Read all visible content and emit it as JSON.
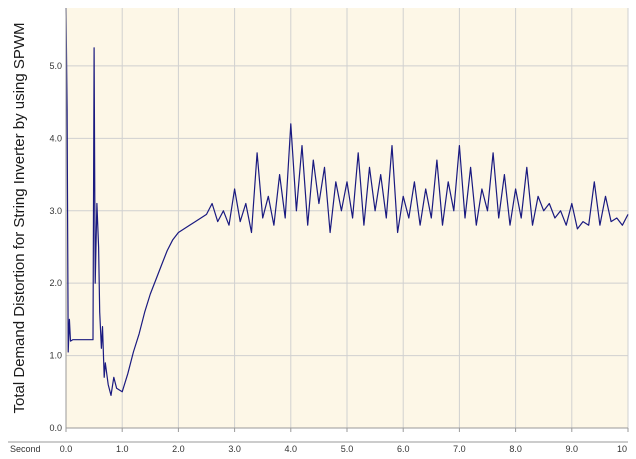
{
  "chart_data": {
    "type": "line",
    "title": "",
    "xlabel": "Second",
    "ylabel": "Total Demand Distortion for String Inverter by using SPWM",
    "xlim": [
      0,
      10
    ],
    "ylim": [
      0,
      5.8
    ],
    "x_ticks": [
      "0.0",
      "1.0",
      "2.0",
      "3.0",
      "4.0",
      "5.0",
      "6.0",
      "7.0",
      "8.0",
      "9.0",
      "10"
    ],
    "y_ticks": [
      "0.0",
      "1.0",
      "2.0",
      "3.0",
      "4.0",
      "5.0"
    ],
    "grid": true,
    "legend": "none",
    "series": [
      {
        "color": "#1a1a80",
        "x": [
          0.0,
          0.02,
          0.04,
          0.06,
          0.08,
          0.12,
          0.2,
          0.3,
          0.4,
          0.48,
          0.5,
          0.52,
          0.55,
          0.58,
          0.6,
          0.63,
          0.65,
          0.68,
          0.7,
          0.75,
          0.8,
          0.85,
          0.9,
          1.0,
          1.1,
          1.2,
          1.3,
          1.4,
          1.5,
          1.6,
          1.7,
          1.8,
          1.9,
          2.0,
          2.1,
          2.2,
          2.3,
          2.4,
          2.5,
          2.6,
          2.7,
          2.8,
          2.9,
          3.0,
          3.1,
          3.2,
          3.3,
          3.4,
          3.5,
          3.6,
          3.7,
          3.8,
          3.9,
          4.0,
          4.1,
          4.2,
          4.3,
          4.4,
          4.5,
          4.6,
          4.7,
          4.8,
          4.9,
          5.0,
          5.1,
          5.2,
          5.3,
          5.4,
          5.5,
          5.6,
          5.7,
          5.8,
          5.9,
          6.0,
          6.1,
          6.2,
          6.3,
          6.4,
          6.5,
          6.6,
          6.7,
          6.8,
          6.9,
          7.0,
          7.1,
          7.2,
          7.3,
          7.4,
          7.5,
          7.6,
          7.7,
          7.8,
          7.9,
          8.0,
          8.1,
          8.2,
          8.3,
          8.4,
          8.5,
          8.6,
          8.7,
          8.8,
          8.9,
          9.0,
          9.1,
          9.2,
          9.3,
          9.4,
          9.5,
          9.6,
          9.7,
          9.8,
          9.9,
          10.0
        ],
        "y": [
          5.8,
          4.4,
          1.05,
          1.5,
          1.2,
          1.22,
          1.22,
          1.22,
          1.22,
          1.22,
          5.25,
          2.0,
          3.1,
          2.5,
          1.6,
          1.1,
          1.4,
          0.7,
          0.9,
          0.6,
          0.45,
          0.7,
          0.55,
          0.5,
          0.75,
          1.05,
          1.3,
          1.6,
          1.85,
          2.05,
          2.25,
          2.45,
          2.6,
          2.7,
          2.75,
          2.8,
          2.85,
          2.9,
          2.95,
          3.1,
          2.85,
          3.0,
          2.8,
          3.3,
          2.85,
          3.1,
          2.7,
          3.8,
          2.9,
          3.2,
          2.8,
          3.5,
          2.9,
          4.2,
          3.0,
          3.9,
          2.8,
          3.7,
          3.1,
          3.6,
          2.7,
          3.4,
          3.0,
          3.4,
          2.9,
          3.8,
          2.8,
          3.6,
          3.0,
          3.5,
          2.9,
          3.9,
          2.7,
          3.2,
          2.9,
          3.4,
          2.8,
          3.3,
          2.9,
          3.7,
          2.8,
          3.4,
          3.0,
          3.9,
          2.9,
          3.6,
          2.8,
          3.3,
          3.0,
          3.8,
          2.9,
          3.5,
          2.8,
          3.3,
          2.9,
          3.6,
          2.8,
          3.2,
          3.0,
          3.1,
          2.9,
          3.0,
          2.8,
          3.1,
          2.75,
          2.85,
          2.8,
          3.4,
          2.8,
          3.2,
          2.85,
          2.9,
          2.8,
          2.95
        ]
      }
    ]
  },
  "colors": {
    "plot_background": "#fdf7e7",
    "grid": "#d0d0d0",
    "axis": "#9a9a9a",
    "series": "#1a1a80"
  }
}
